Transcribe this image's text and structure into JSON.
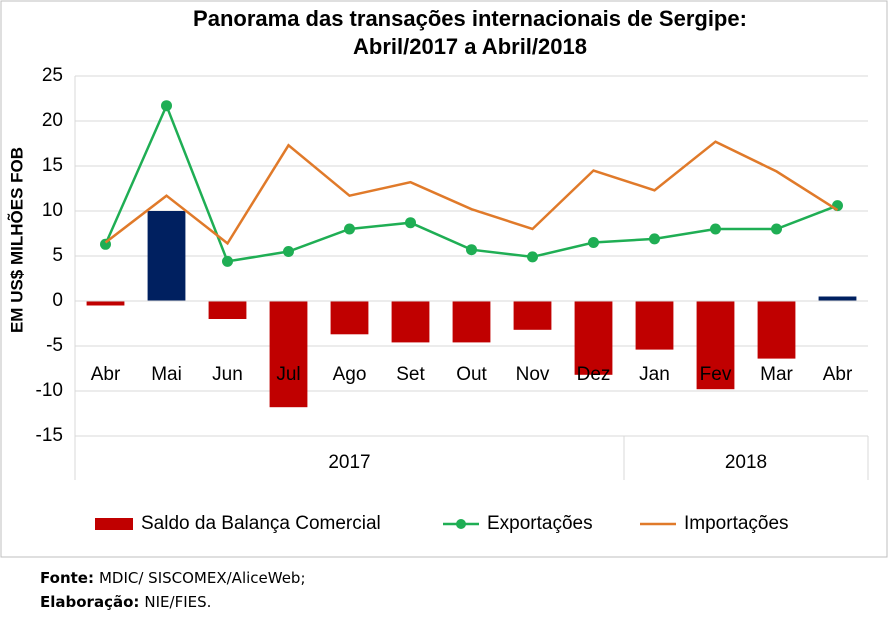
{
  "chart_data": {
    "type": "combo",
    "title": [
      "Panorama das transações internacionais de Sergipe:",
      "Abril/2017 a Abril/2018"
    ],
    "y_label": "EM US$ MILHÕES FOB",
    "categories": [
      "Abr",
      "Mai",
      "Jun",
      "Jul",
      "Ago",
      "Set",
      "Out",
      "Nov",
      "Dez",
      "Jan",
      "Fev",
      "Mar",
      "Abr"
    ],
    "groups": [
      {
        "label": "2017",
        "span": 9
      },
      {
        "label": "2018",
        "span": 4
      }
    ],
    "ylim": [
      -15,
      25
    ],
    "yticks": [
      -15,
      -10,
      -5,
      0,
      5,
      10,
      15,
      20,
      25
    ],
    "grid": true,
    "series": [
      {
        "name": "Saldo da Balança Comercial",
        "type": "bar",
        "color": "#c00000",
        "positive_color": "#002060",
        "values": [
          -0.5,
          10,
          -2,
          -11.8,
          -3.7,
          -4.6,
          -4.6,
          -3.2,
          -8.2,
          -5.4,
          -9.8,
          -6.4,
          0.5
        ]
      },
      {
        "name": "Exportações",
        "type": "line",
        "markers": true,
        "color": "#1fae54",
        "values": [
          6.3,
          21.7,
          4.4,
          5.5,
          8,
          8.7,
          5.7,
          4.9,
          6.5,
          6.9,
          8,
          8,
          10.6
        ]
      },
      {
        "name": "Importações",
        "type": "line",
        "markers": false,
        "color": "#e07a2a",
        "values": [
          6.5,
          11.7,
          6.4,
          17.3,
          11.7,
          13.2,
          10.2,
          8,
          14.5,
          12.3,
          17.7,
          14.4,
          10.1
        ]
      }
    ],
    "legend": "bottom"
  },
  "notes": [
    {
      "label": "Fonte:",
      "text": "MDIC/ SISCOMEX/AliceWeb;"
    },
    {
      "label": "Elaboração:",
      "text": "NIE/FIES."
    }
  ]
}
